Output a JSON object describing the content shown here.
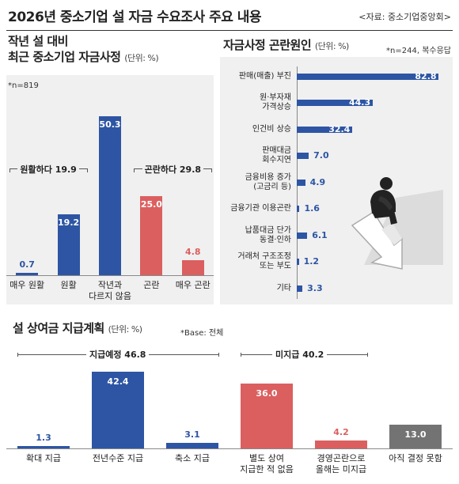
{
  "header": {
    "title": "2026년 중소기업 설 자금 수요조사 주요 내용",
    "source": "<자료: 중소기업중앙회>"
  },
  "colors": {
    "blue": "#2d55a3",
    "red": "#db5f5f",
    "gray": "#737373",
    "card_bg": "#f0f0f0"
  },
  "section1": {
    "title_line1": "작년 설 대비",
    "title_line2": "최근 중소기업 자금사정",
    "unit": "(단위: %)",
    "n": "*n=819"
  },
  "section2": {
    "title": "자금사정 곤란원인",
    "unit": "(단위: %)",
    "n": "*n=244, 복수응답"
  },
  "section3": {
    "title": "설 상여금 지급계획",
    "unit": "(단위: %)",
    "base": "*Base: 전체"
  },
  "illustration": {
    "name": "worried-person-on-falling-arrow"
  },
  "chart_data": [
    {
      "type": "bar",
      "id": "fund-situation",
      "categories": [
        "매우 원활",
        "원활",
        "작년과 다르지 않음",
        "곤란",
        "매우 곤란"
      ],
      "category_lines": [
        [
          "매우 원활"
        ],
        [
          "원활"
        ],
        [
          "작년과",
          "다르지 않음"
        ],
        [
          "곤란"
        ],
        [
          "매우 곤란"
        ]
      ],
      "values": [
        0.7,
        19.2,
        50.3,
        25.0,
        4.8
      ],
      "value_labels": [
        "0.7",
        "19.2",
        "50.3",
        "25.0",
        "4.8"
      ],
      "colors": [
        "blue",
        "blue",
        "blue",
        "red",
        "red"
      ],
      "groups": [
        {
          "label": "원활하다 19.9",
          "from": 0,
          "to": 1
        },
        {
          "label": "곤란하다 29.8",
          "from": 3,
          "to": 4
        }
      ],
      "ylim": [
        0,
        55
      ]
    },
    {
      "type": "bar",
      "orientation": "horizontal",
      "id": "difficulty-causes",
      "categories": [
        "판매(매출) 부진",
        "원·부자재 가격상승",
        "인건비 상승",
        "판매대금 회수지연",
        "금융비용 증가 (고금리 등)",
        "금융기관 이용곤란",
        "납품대금 단가 동결·인하",
        "거래처 구조조정 또는 부도",
        "기타"
      ],
      "category_lines": [
        [
          "판매(매출) 부진"
        ],
        [
          "원·부자재",
          "가격상승"
        ],
        [
          "인건비 상승"
        ],
        [
          "판매대금",
          "회수지연"
        ],
        [
          "금융비용 증가",
          "(고금리 등)"
        ],
        [
          "금융기관 이용곤란"
        ],
        [
          "납품대금 단가",
          "동결·인하"
        ],
        [
          "거래처 구조조정",
          "또는 부도"
        ],
        [
          "기타"
        ]
      ],
      "values": [
        82.8,
        44.3,
        32.4,
        7.0,
        4.9,
        1.6,
        6.1,
        1.2,
        3.3
      ],
      "value_labels": [
        "82.8",
        "44.3",
        "32.4",
        "7.0",
        "4.9",
        "1.6",
        "6.1",
        "1.2",
        "3.3"
      ],
      "xlim": [
        0,
        90
      ]
    },
    {
      "type": "bar",
      "id": "bonus-plan",
      "categories": [
        "확대 지급",
        "전년수준 지급",
        "축소 지급",
        "별도 상여 지급한 적 없음",
        "경영곤란으로 올해는 미지급",
        "아직 결정 못함"
      ],
      "category_lines": [
        [
          "확대 지급"
        ],
        [
          "전년수준 지급"
        ],
        [
          "축소 지급"
        ],
        [
          "별도 상여",
          "지급한 적 없음"
        ],
        [
          "경영곤란으로",
          "올해는 미지급"
        ],
        [
          "아직 결정 못함"
        ]
      ],
      "values": [
        1.3,
        42.4,
        3.1,
        36.0,
        4.2,
        13.0
      ],
      "value_labels": [
        "1.3",
        "42.4",
        "3.1",
        "36.0",
        "4.2",
        "13.0"
      ],
      "colors": [
        "blue",
        "blue",
        "blue",
        "red",
        "red",
        "gray"
      ],
      "groups": [
        {
          "label": "지급예정 46.8",
          "from": 0,
          "to": 2
        },
        {
          "label": "미지급 40.2",
          "from": 3,
          "to": 4
        }
      ],
      "ylim": [
        0,
        46
      ]
    }
  ]
}
